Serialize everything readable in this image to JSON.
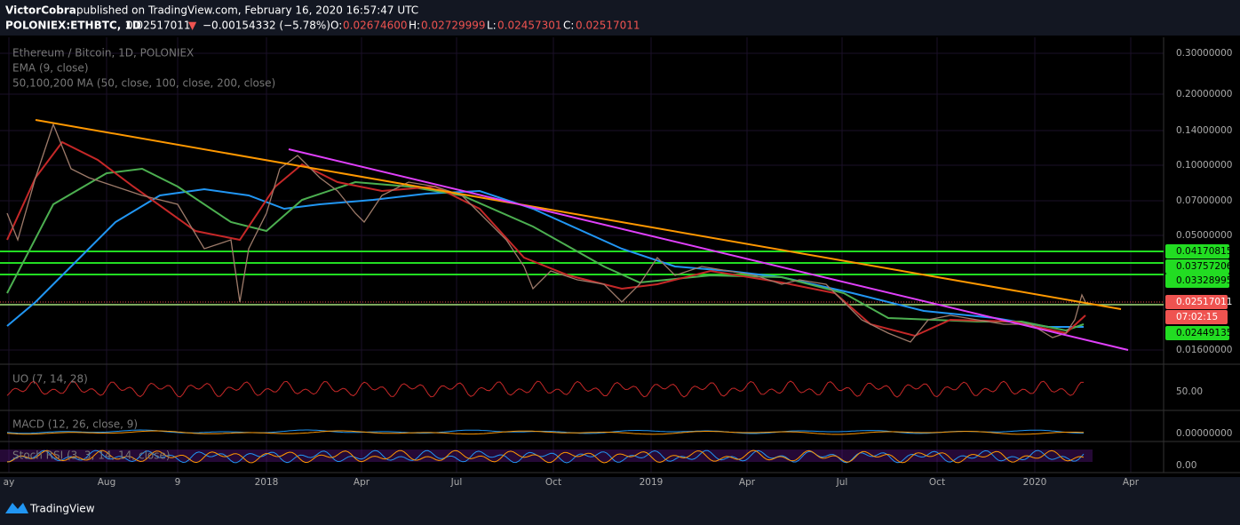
{
  "header": {
    "publisher": "VictorCobra",
    "published": "published on TradingView.com, February 16, 2020 16:57:47 UTC",
    "symbol": "POLONIEX:ETHBTC, 1D",
    "last": "0.02517011",
    "arrow": "▼",
    "change": "−0.00154332 (−5.78%)",
    "open_label": "O:",
    "open": "0.02674600",
    "high_label": "H:",
    "high": "0.02729999",
    "low_label": "L:",
    "low": "0.02457301",
    "close_label": "C:",
    "close": "0.02517011"
  },
  "legend": [
    "Ethereum / Bitcoin, 1D, POLONIEX",
    "EMA (9, close)",
    "50,100,200 MA (50, close, 100, close, 200, close)"
  ],
  "price_axis": [
    "0.30000000",
    "0.20000000",
    "0.14000000",
    "0.10000000",
    "0.07000000",
    "0.05000000",
    "0.01600000"
  ],
  "price_badges": [
    {
      "text": "0.04170815",
      "kind": "green"
    },
    {
      "text": "0.03757206",
      "kind": "green"
    },
    {
      "text": "0.03328995",
      "kind": "green"
    },
    {
      "text": "0.02517011",
      "kind": "red"
    },
    {
      "text": "07:02:15",
      "kind": "red"
    },
    {
      "text": "0.02449135",
      "kind": "green"
    }
  ],
  "indicators": [
    {
      "label": "UO (7, 14, 28)",
      "axis": "50.00"
    },
    {
      "label": "MACD (12, 26, close, 9)",
      "axis": "0.00000000"
    },
    {
      "label": "Stoch RSI (3, 3, 14, 14, close)",
      "axis": "0.00"
    }
  ],
  "time_axis": [
    "ay",
    "Aug",
    "9",
    "2018",
    "Apr",
    "Jul",
    "Oct",
    "2019",
    "Apr",
    "Jul",
    "Oct",
    "2020",
    "Apr"
  ],
  "footer": {
    "brand": "TradingView"
  }
}
